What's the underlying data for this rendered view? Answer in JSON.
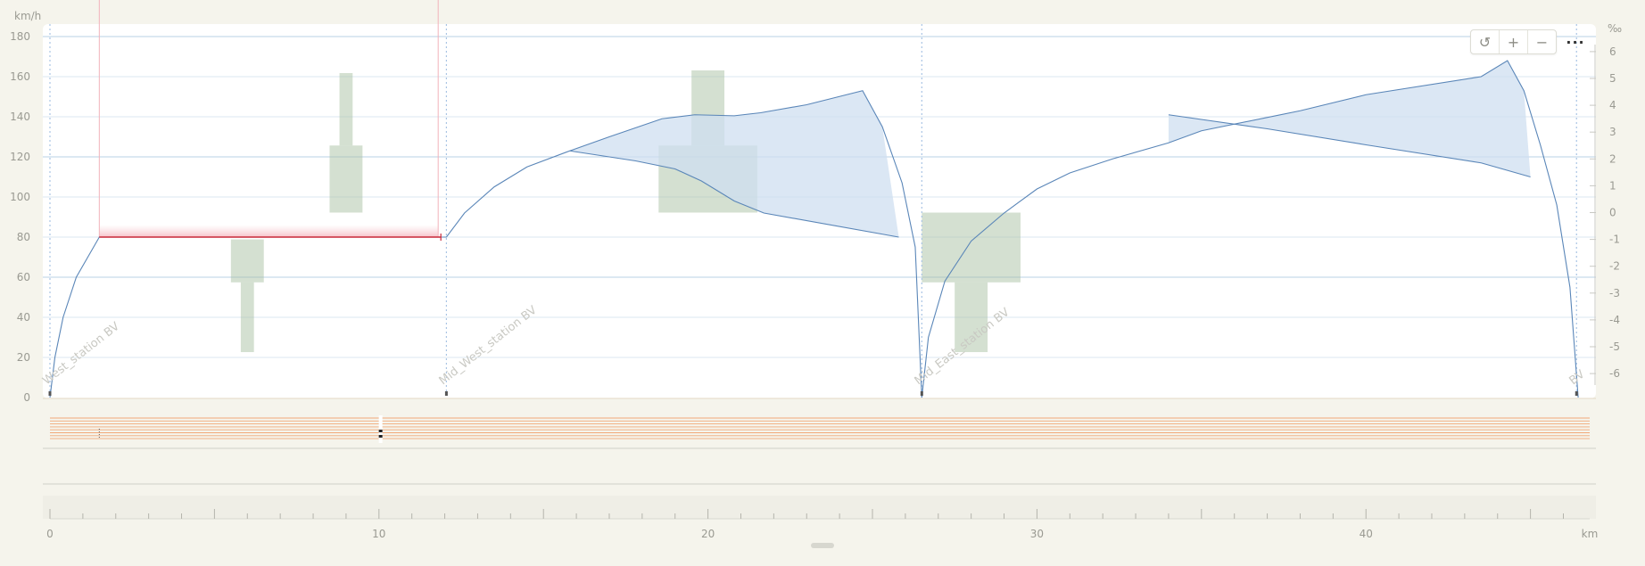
{
  "toolbar": {
    "reset_icon": "reset-icon",
    "zoom_in": "+",
    "zoom_out": "−",
    "more": "···"
  },
  "chart_data": {
    "type": "line",
    "ylabel": "km/h",
    "y2label": "‰",
    "xunit": "km",
    "xlim": [
      0,
      46.8
    ],
    "ylim": [
      0,
      180
    ],
    "y2lim": [
      -7,
      7
    ],
    "xticks": [
      0,
      10,
      20,
      30,
      40
    ],
    "yticks": [
      0,
      20,
      40,
      60,
      80,
      100,
      120,
      140,
      160,
      180
    ],
    "y2ticks": [
      6,
      5,
      4,
      3,
      2,
      1,
      0,
      -1,
      -2,
      -3,
      -4,
      -5,
      -6
    ],
    "grid": true,
    "stations": [
      {
        "km": 0.0,
        "label": "West_station BV"
      },
      {
        "km": 12.05,
        "label": "Mid_West_station BV"
      },
      {
        "km": 26.5,
        "label": "Mid_East_station BV"
      },
      {
        "km": 46.4,
        "label": "BV"
      }
    ],
    "speed_limit": {
      "x_start": 1.5,
      "x_end": 11.8,
      "y": 80
    },
    "slope_blocks": [
      {
        "x0": 5.5,
        "x1": 6.5,
        "g0": -1.0,
        "g1": -2.6
      },
      {
        "x0": 5.8,
        "x1": 6.2,
        "g0": -2.6,
        "g1": -5.2
      },
      {
        "x0": 8.5,
        "x1": 9.5,
        "g0": 2.5,
        "g1": 0
      },
      {
        "x0": 8.8,
        "x1": 9.2,
        "g0": 5.2,
        "g1": 2.5
      },
      {
        "x0": 18.5,
        "x1": 21.5,
        "g0": 2.5,
        "g1": 0
      },
      {
        "x0": 19.5,
        "x1": 20.5,
        "g0": 5.3,
        "g1": 2.5
      },
      {
        "x0": 26.5,
        "x1": 29.5,
        "g0": 0,
        "g1": -2.6
      },
      {
        "x0": 27.5,
        "x1": 28.5,
        "g0": -2.6,
        "g1": -5.2
      }
    ],
    "series": [
      {
        "values": [
          [
            0,
            0
          ],
          [
            0.15,
            20
          ],
          [
            0.4,
            40
          ],
          [
            0.8,
            60
          ],
          [
            1.5,
            80
          ],
          [
            11.8,
            80
          ],
          [
            12.05,
            80
          ],
          [
            12.6,
            92
          ],
          [
            13.5,
            105
          ],
          [
            14.5,
            115
          ],
          [
            15.8,
            123
          ],
          [
            17,
            130
          ],
          [
            18.6,
            139
          ],
          [
            19.6,
            141
          ],
          [
            20.8,
            140.5
          ],
          [
            21.6,
            142
          ],
          [
            23,
            146
          ],
          [
            24.7,
            153
          ],
          [
            25.3,
            135
          ],
          [
            25.9,
            107
          ],
          [
            26.3,
            75
          ],
          [
            26.5,
            0
          ]
        ]
      },
      {
        "values": [
          [
            15.8,
            123
          ],
          [
            17.8,
            118
          ],
          [
            19,
            114
          ],
          [
            19.8,
            108
          ],
          [
            20.8,
            98
          ],
          [
            21.7,
            92
          ],
          [
            25.8,
            80
          ]
        ]
      },
      {
        "values": [
          [
            26.5,
            0
          ],
          [
            26.7,
            30
          ],
          [
            27.2,
            58
          ],
          [
            28,
            78
          ],
          [
            29,
            92
          ],
          [
            30,
            104
          ],
          [
            31,
            112
          ],
          [
            32.3,
            119
          ],
          [
            34,
            127
          ],
          [
            35,
            133
          ],
          [
            38,
            143
          ],
          [
            40,
            151
          ],
          [
            43.5,
            160
          ],
          [
            44.3,
            168
          ],
          [
            44.8,
            153
          ],
          [
            45.3,
            126
          ],
          [
            45.8,
            96
          ],
          [
            46.2,
            55
          ],
          [
            46.45,
            0
          ]
        ]
      },
      {
        "values": [
          [
            34,
            141
          ],
          [
            37,
            134
          ],
          [
            40,
            126
          ],
          [
            43.5,
            117
          ],
          [
            45,
            110
          ]
        ]
      }
    ]
  }
}
